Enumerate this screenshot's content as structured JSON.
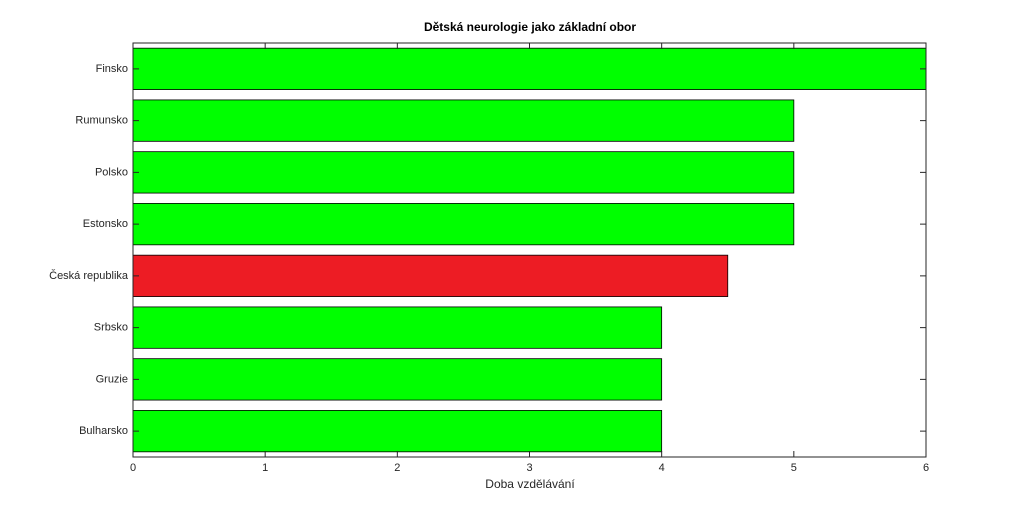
{
  "chart_data": {
    "type": "barh",
    "title": "Dětská neurologie jako základní obor",
    "xlabel": "Doba vzdělávání",
    "categories": [
      "Finsko",
      "Rumunsko",
      "Polsko",
      "Estonsko",
      "Česká republika",
      "Srbsko",
      "Gruzie",
      "Bulharsko"
    ],
    "values": [
      6,
      5,
      5,
      5,
      4.5,
      4,
      4,
      4
    ],
    "colors": [
      "#00ff00",
      "#00ff00",
      "#00ff00",
      "#00ff00",
      "#ed1c24",
      "#00ff00",
      "#00ff00",
      "#00ff00"
    ],
    "xlim": [
      0,
      6
    ],
    "xticks": [
      0,
      1,
      2,
      3,
      4,
      5,
      6
    ]
  }
}
